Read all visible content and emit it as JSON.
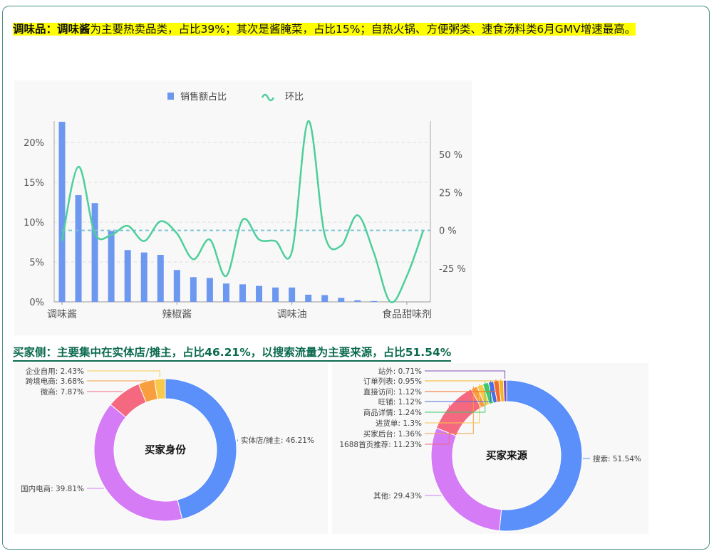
{
  "summary": {
    "bold_prefix": "调味品：调味酱",
    "text": "为主要热卖品类，占比39%；其次是酱腌菜，占比15%；自热火锅、方便粥类、速食汤料类6月GMV增速最高。"
  },
  "section2_heading": "买家侧：主要集中在实体店/摊主，占比46.21%，以搜索流量为主要来源，占比51.54%",
  "colors": {
    "bar": "#6d98f0",
    "line": "#4ccf9a",
    "zero_line": "#7fc1d6",
    "heading": "#0b6a4e",
    "highlight": "#ffff00"
  },
  "chart_data": [
    {
      "type": "bar+line",
      "legend": [
        "销售额占比",
        "环比"
      ],
      "legend_placement": "top",
      "categories": [
        "调味酱",
        "",
        "",
        "",
        "",
        "",
        "",
        "辣椒酱",
        "",
        "",
        "",
        "",
        "",
        "",
        "调味油",
        "",
        "",
        "",
        "",
        "",
        "",
        "食品甜味剂",
        ""
      ],
      "series": [
        {
          "name": "销售额占比",
          "type": "bar",
          "axis": "left",
          "values": [
            22.6,
            13.4,
            12.4,
            8.9,
            6.5,
            6.2,
            5.9,
            4.0,
            3.1,
            3.0,
            2.3,
            2.2,
            2.0,
            1.8,
            1.8,
            0.9,
            0.85,
            0.5,
            0.2,
            0.1,
            0,
            0,
            0
          ]
        },
        {
          "name": "环比",
          "type": "line",
          "axis": "right",
          "smooth": true,
          "values": [
            -7,
            42,
            -2,
            -3,
            3,
            -7,
            6,
            -2,
            -19,
            -6,
            -30,
            7,
            -6,
            -7,
            -14,
            72,
            -3,
            -10,
            10,
            -15,
            -47,
            -30,
            0
          ]
        }
      ],
      "y_left": {
        "range": [
          0,
          22.7
        ],
        "ticks": [
          "0%",
          "5%",
          "10%",
          "15%",
          "20%"
        ],
        "tick_values": [
          0,
          5,
          10,
          15,
          20
        ]
      },
      "y_right": {
        "range": [
          -47,
          72
        ],
        "ticks": [
          "-25 %",
          "0 %",
          "25 %",
          "50 %"
        ],
        "tick_values": [
          -25,
          0,
          25,
          50
        ]
      },
      "grid": true
    },
    {
      "type": "pie",
      "donut": true,
      "center_label": "买家身份",
      "slices": [
        {
          "label": "实体店/摊主",
          "value": 46.21,
          "text": "实体店/摊主: 46.21%",
          "color": "#5b8ff9"
        },
        {
          "label": "国内电商",
          "value": 39.81,
          "text": "国内电商: 39.81%",
          "color": "#d47bf5"
        },
        {
          "label": "微商",
          "value": 7.87,
          "text": "微商: 7.87%",
          "color": "#f4697f"
        },
        {
          "label": "跨境电商",
          "value": 3.68,
          "text": "跨境电商: 3.68%",
          "color": "#f89e3f"
        },
        {
          "label": "企业自用",
          "value": 2.43,
          "text": "企业自用: 2.43%",
          "color": "#f8c94b"
        }
      ]
    },
    {
      "type": "pie",
      "donut": true,
      "center_label": "买家来源",
      "slices": [
        {
          "label": "搜索",
          "value": 51.54,
          "text": "搜索: 51.54%",
          "color": "#5b8ff9"
        },
        {
          "label": "其他",
          "value": 29.43,
          "text": "其他: 29.43%",
          "color": "#d47bf5"
        },
        {
          "label": "1688首页推荐",
          "value": 11.23,
          "text": "1688首页推荐: 11.23%",
          "color": "#f4697f"
        },
        {
          "label": "买家后台",
          "value": 1.36,
          "text": "买家后台: 1.36%",
          "color": "#f89e3f"
        },
        {
          "label": "进货单",
          "value": 1.3,
          "text": "进货单: 1.3%",
          "color": "#f8c94b"
        },
        {
          "label": "商品详情",
          "value": 1.24,
          "text": "商品详情: 1.24%",
          "color": "#3ecb6b"
        },
        {
          "label": "旺铺",
          "value": 1.12,
          "text": "旺铺: 1.12%",
          "color": "#4a6ee0"
        },
        {
          "label": "直接访问",
          "value": 1.12,
          "text": "直接访问: 1.12%",
          "color": "#f56a2d"
        },
        {
          "label": "订单列表",
          "value": 0.95,
          "text": "订单列表: 0.95%",
          "color": "#f4b420"
        },
        {
          "label": "站外",
          "value": 0.71,
          "text": "站外: 0.71%",
          "color": "#7e4fb5"
        }
      ]
    }
  ]
}
